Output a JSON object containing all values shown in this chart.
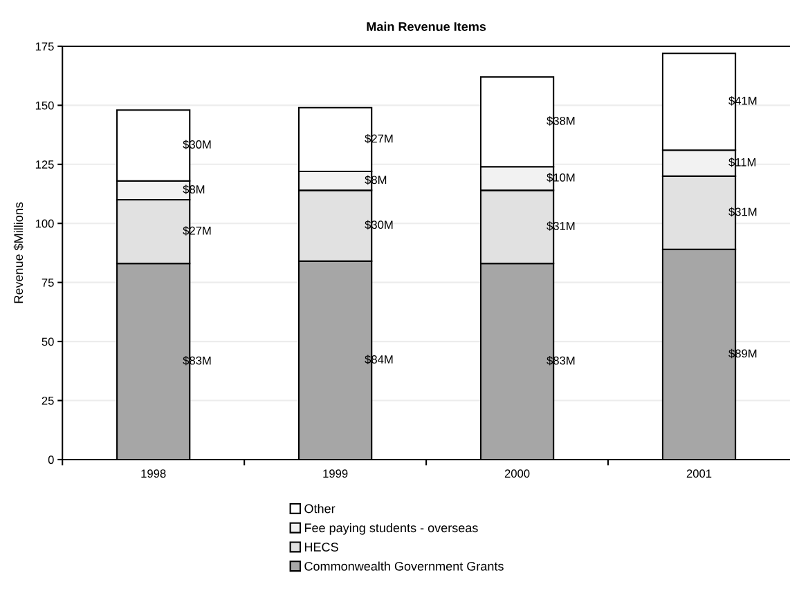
{
  "chart_data": {
    "type": "bar",
    "title": "Main Revenue Items",
    "ylabel": "Revenue $Millions",
    "categories": [
      "1998",
      "1999",
      "2000",
      "2001"
    ],
    "stacked": true,
    "series": [
      {
        "name": "Commonwealth Government Grants",
        "color": "#a6a6a6",
        "values": [
          83,
          84,
          83,
          89
        ],
        "value_labels": [
          "$83M",
          "$84M",
          "$83M",
          "$89M"
        ]
      },
      {
        "name": "HECS",
        "color": "#e1e1e1",
        "values": [
          27,
          30,
          31,
          31
        ],
        "value_labels": [
          "$27M",
          "$30M",
          "$31M",
          "$31M"
        ]
      },
      {
        "name": "Fee paying students - overseas",
        "color": "#f2f2f2",
        "values": [
          8,
          8,
          10,
          11
        ],
        "value_labels": [
          "$8M",
          "$8M",
          "$10M",
          "$11M"
        ]
      },
      {
        "name": "Other",
        "color": "#ffffff",
        "values": [
          30,
          27,
          38,
          41
        ],
        "value_labels": [
          "$30M",
          "$27M",
          "$38M",
          "$41M"
        ]
      }
    ],
    "ylim": [
      0,
      175
    ],
    "yticks": [
      0,
      25,
      50,
      75,
      100,
      125,
      150,
      175
    ],
    "grid": "y",
    "legend": "bottom"
  }
}
